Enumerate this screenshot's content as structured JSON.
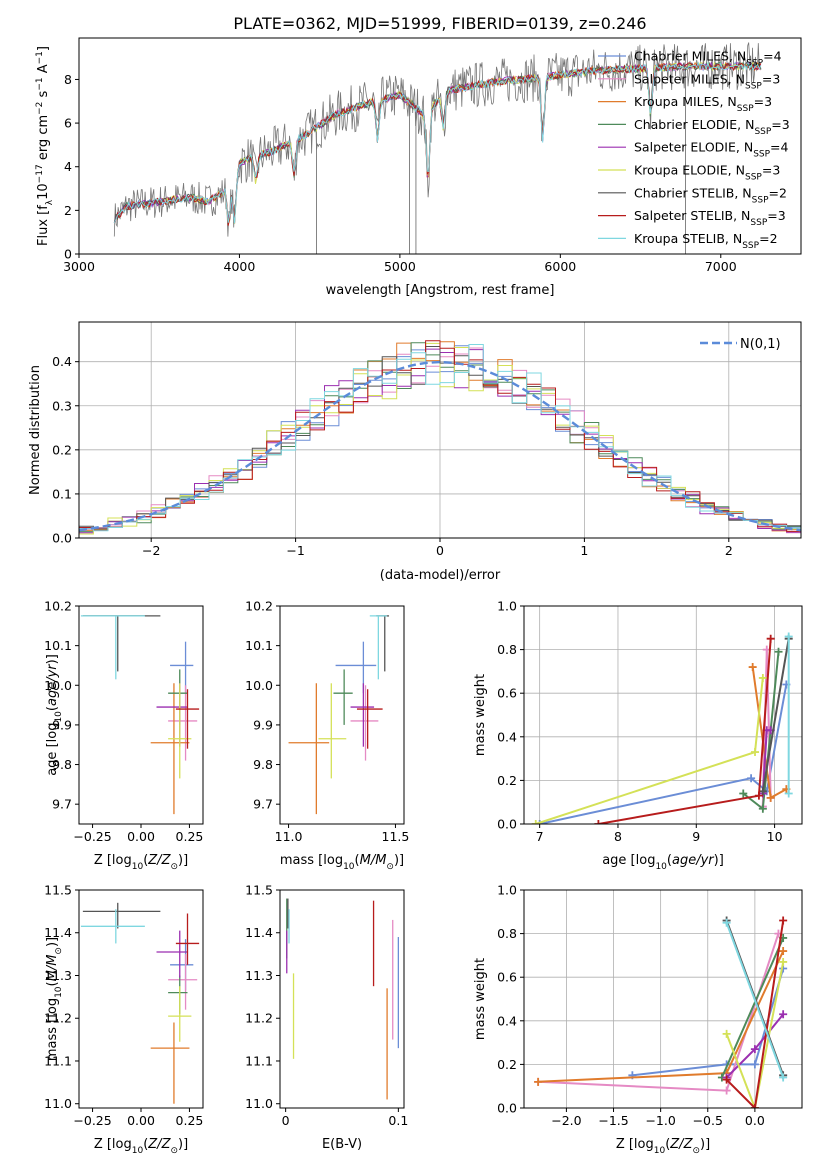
{
  "figure": {
    "title": "PLATE=0362, MJD=51999, FIBERID=0139, z=0.246"
  },
  "legend": {
    "entries": [
      {
        "model": "Chabrier MILES",
        "n": "4",
        "color": "#6b8dd6"
      },
      {
        "model": "Salpeter MILES",
        "n": "3",
        "color": "#e58ac4"
      },
      {
        "model": "Kroupa MILES",
        "n": "3",
        "color": "#e07b2c"
      },
      {
        "model": "Chabrier ELODIE",
        "n": "3",
        "color": "#4e8a5a"
      },
      {
        "model": "Salpeter ELODIE",
        "n": "4",
        "color": "#9b2fb0"
      },
      {
        "model": "Kroupa ELODIE",
        "n": "3",
        "color": "#d4e157"
      },
      {
        "model": "Chabrier STELIB",
        "n": "2",
        "color": "#555555"
      },
      {
        "model": "Salpeter STELIB",
        "n": "3",
        "color": "#b71c1c"
      },
      {
        "model": "Kroupa STELIB",
        "n": "2",
        "color": "#7fd7e0"
      }
    ]
  },
  "chart_data": [
    {
      "id": "spectrum",
      "type": "line",
      "xlabel": "wavelength [Angstrom, rest frame]",
      "ylabel": "Flux [f_λ 10^-17 erg cm^-2 s^-1 A^-1]",
      "xlim": [
        3000,
        7500
      ],
      "ylim": [
        0,
        9.9
      ],
      "xticks": [
        "3000",
        "4000",
        "5000",
        "6000",
        "7000"
      ],
      "yticks": [
        "0",
        "2",
        "4",
        "6",
        "8"
      ],
      "continuum": [
        [
          3220,
          1.6
        ],
        [
          3300,
          2.2
        ],
        [
          3500,
          2.4
        ],
        [
          3700,
          2.6
        ],
        [
          3800,
          2.4
        ],
        [
          3900,
          2.8
        ],
        [
          4000,
          4.2
        ],
        [
          4200,
          4.7
        ],
        [
          4400,
          5.4
        ],
        [
          4600,
          6.4
        ],
        [
          4800,
          6.9
        ],
        [
          5000,
          7.3
        ],
        [
          5150,
          6.4
        ],
        [
          5300,
          7.5
        ],
        [
          5600,
          7.9
        ],
        [
          5900,
          8.1
        ],
        [
          6200,
          8.4
        ],
        [
          6500,
          8.5
        ],
        [
          6800,
          8.6
        ],
        [
          7250,
          8.6
        ]
      ],
      "data_spikes": [
        4480,
        5060,
        5100,
        6780
      ],
      "grid": false
    },
    {
      "id": "residuals",
      "type": "histogram",
      "xlabel": "(data-model)/error",
      "ylabel": "Normed distribution",
      "xlim": [
        -2.5,
        2.5
      ],
      "ylim": [
        0,
        0.49
      ],
      "xticks": [
        "−2",
        "−1",
        "0",
        "1",
        "2"
      ],
      "yticks": [
        "0.0",
        "0.1",
        "0.2",
        "0.3",
        "0.4"
      ],
      "gaussian_label": "N(0,1)",
      "gaussian_color": "#5b8bd9",
      "grid": true
    },
    {
      "id": "age-vs-Z",
      "type": "errorbar",
      "xlabel": "Z [log10(Z/Z⊙)]",
      "ylabel": "age [log10(age/yr)]",
      "xlim": [
        -0.32,
        0.32
      ],
      "ylim": [
        9.65,
        10.2
      ],
      "xticks": [
        "−0.25",
        "0.00",
        "0.25"
      ],
      "yticks": [
        "9.7",
        "9.8",
        "9.9",
        "10.0",
        "10.1",
        "10.2"
      ],
      "points": [
        {
          "x": 0.23,
          "y": 10.05,
          "xerr": [
            0.08,
            0.04
          ],
          "yerr": [
            0.07,
            0.06
          ]
        },
        {
          "x": 0.23,
          "y": 9.91,
          "xerr": [
            0.09,
            0.06
          ],
          "yerr": [
            0.1,
            0.09
          ]
        },
        {
          "x": 0.17,
          "y": 9.855,
          "xerr": [
            0.12,
            0.08
          ],
          "yerr": [
            0.18,
            0.15
          ]
        },
        {
          "x": 0.2,
          "y": 9.98,
          "xerr": [
            0.06,
            0.04
          ],
          "yerr": [
            0.08,
            0.06
          ]
        },
        {
          "x": 0.2,
          "y": 9.945,
          "xerr": [
            0.12,
            0.04
          ],
          "yerr": [
            0.1,
            0.06
          ]
        },
        {
          "x": 0.2,
          "y": 9.865,
          "xerr": [
            0.06,
            0.06
          ],
          "yerr": [
            0.1,
            0.14
          ]
        },
        {
          "x": -0.12,
          "y": 10.175,
          "xerr": [
            0.18,
            0.22
          ],
          "yerr": [
            0.14,
            0.0
          ]
        },
        {
          "x": 0.24,
          "y": 9.94,
          "xerr": [
            0.06,
            0.06
          ],
          "yerr": [
            0.1,
            0.05
          ]
        },
        {
          "x": -0.13,
          "y": 10.175,
          "xerr": [
            0.18,
            0.15
          ],
          "yerr": [
            0.16,
            0.0
          ]
        }
      ]
    },
    {
      "id": "age-vs-mass",
      "type": "errorbar",
      "xlabel": "mass [log10(M/M⊙)]",
      "ylabel": "",
      "xlim": [
        10.96,
        11.54
      ],
      "ylim": [
        9.65,
        10.2
      ],
      "xticks": [
        "11.0",
        "11.5"
      ],
      "yticks": [
        "9.7",
        "9.8",
        "9.9",
        "10.0",
        "10.1",
        "10.2"
      ],
      "points": [
        {
          "x": 11.35,
          "y": 10.05,
          "xerr": [
            0.13,
            0.06
          ],
          "yerr": [
            0.07,
            0.06
          ]
        },
        {
          "x": 11.36,
          "y": 9.91,
          "xerr": [
            0.07,
            0.06
          ],
          "yerr": [
            0.1,
            0.09
          ]
        },
        {
          "x": 11.13,
          "y": 9.855,
          "xerr": [
            0.13,
            0.06
          ],
          "yerr": [
            0.18,
            0.15
          ]
        },
        {
          "x": 11.26,
          "y": 9.98,
          "xerr": [
            0.05,
            0.04
          ],
          "yerr": [
            0.08,
            0.06
          ]
        },
        {
          "x": 11.35,
          "y": 9.945,
          "xerr": [
            0.06,
            0.05
          ],
          "yerr": [
            0.1,
            0.06
          ]
        },
        {
          "x": 11.2,
          "y": 9.865,
          "xerr": [
            0.06,
            0.07
          ],
          "yerr": [
            0.1,
            0.14
          ]
        },
        {
          "x": 11.45,
          "y": 10.175,
          "xerr": [
            0.04,
            0.02
          ],
          "yerr": [
            0.14,
            0.0
          ]
        },
        {
          "x": 11.37,
          "y": 9.94,
          "xerr": [
            0.05,
            0.07
          ],
          "yerr": [
            0.1,
            0.05
          ]
        },
        {
          "x": 11.42,
          "y": 10.175,
          "xerr": [
            0.04,
            0.04
          ],
          "yerr": [
            0.16,
            0.0
          ]
        }
      ]
    },
    {
      "id": "weight-vs-age",
      "type": "line",
      "xlabel": "age [log10(age/yr)]",
      "ylabel": "mass weight",
      "xlim": [
        6.8,
        10.35
      ],
      "ylim": [
        0,
        1
      ],
      "xticks": [
        "7",
        "8",
        "9",
        "10"
      ],
      "yticks": [
        "0.0",
        "0.2",
        "0.4",
        "0.6",
        "0.8",
        "1.0"
      ],
      "grid": true,
      "series": [
        {
          "color": "#6b8dd6",
          "points": [
            [
              7,
              0
            ],
            [
              9.7,
              0.21
            ],
            [
              9.9,
              0.15
            ],
            [
              10.15,
              0.64
            ]
          ]
        },
        {
          "color": "#e58ac4",
          "points": [
            [
              9.85,
              0.08
            ],
            [
              9.9,
              0.8
            ],
            [
              9.95,
              0.12
            ]
          ]
        },
        {
          "color": "#e07b2c",
          "points": [
            [
              9.72,
              0.72
            ],
            [
              9.95,
              0.12
            ],
            [
              10.15,
              0.16
            ]
          ]
        },
        {
          "color": "#4e8a5a",
          "points": [
            [
              9.6,
              0.14
            ],
            [
              9.85,
              0.07
            ],
            [
              10.05,
              0.79
            ]
          ]
        },
        {
          "color": "#9b2fb0",
          "points": [
            [
              9.85,
              0.14
            ],
            [
              9.9,
              0.43
            ],
            [
              9.95,
              0.43
            ]
          ]
        },
        {
          "color": "#d4e157",
          "points": [
            [
              6.95,
              0
            ],
            [
              9.75,
              0.33
            ],
            [
              9.85,
              0.67
            ]
          ]
        },
        {
          "color": "#555555",
          "points": [
            [
              9.85,
              0.15
            ],
            [
              10.18,
              0.85
            ]
          ]
        },
        {
          "color": "#b71c1c",
          "points": [
            [
              7.75,
              0
            ],
            [
              9.8,
              0.13
            ],
            [
              9.95,
              0.85
            ]
          ]
        },
        {
          "color": "#7fd7e0",
          "points": [
            [
              10.18,
              0.14
            ],
            [
              10.18,
              0.86
            ]
          ]
        }
      ]
    },
    {
      "id": "mass-vs-Z",
      "type": "errorbar",
      "xlabel": "Z [log10(Z/Z⊙)]",
      "ylabel": "mass [log10(M/M⊙)]",
      "xlim": [
        -0.32,
        0.32
      ],
      "ylim": [
        10.99,
        11.5
      ],
      "xticks": [
        "−0.25",
        "0.00",
        "0.25"
      ],
      "yticks": [
        "11.0",
        "11.1",
        "11.2",
        "11.3",
        "11.4",
        "11.5"
      ],
      "points": [
        {
          "x": 0.23,
          "y": 11.325,
          "xerr": [
            0.08,
            0.04
          ],
          "yerr": [
            0.06,
            0.06
          ]
        },
        {
          "x": 0.23,
          "y": 11.29,
          "xerr": [
            0.09,
            0.06
          ],
          "yerr": [
            0.07,
            0.06
          ]
        },
        {
          "x": 0.17,
          "y": 11.13,
          "xerr": [
            0.12,
            0.08
          ],
          "yerr": [
            0.13,
            0.06
          ]
        },
        {
          "x": 0.2,
          "y": 11.26,
          "xerr": [
            0.06,
            0.04
          ],
          "yerr": [
            0.05,
            0.04
          ]
        },
        {
          "x": 0.2,
          "y": 11.355,
          "xerr": [
            0.12,
            0.04
          ],
          "yerr": [
            0.06,
            0.05
          ]
        },
        {
          "x": 0.2,
          "y": 11.205,
          "xerr": [
            0.06,
            0.06
          ],
          "yerr": [
            0.06,
            0.07
          ]
        },
        {
          "x": -0.12,
          "y": 11.45,
          "xerr": [
            0.18,
            0.22
          ],
          "yerr": [
            0.04,
            0.02
          ]
        },
        {
          "x": 0.24,
          "y": 11.375,
          "xerr": [
            0.06,
            0.06
          ],
          "yerr": [
            0.05,
            0.07
          ]
        },
        {
          "x": -0.13,
          "y": 11.415,
          "xerr": [
            0.18,
            0.15
          ],
          "yerr": [
            0.04,
            0.04
          ]
        }
      ]
    },
    {
      "id": "mass-vs-EBV",
      "type": "errorbar",
      "xlabel": "E(B-V)",
      "ylabel": "",
      "xlim": [
        -0.005,
        0.105
      ],
      "ylim": [
        10.99,
        11.5
      ],
      "xticks": [
        "0",
        "0.1"
      ],
      "yticks": [
        "11.0",
        "11.1",
        "11.2",
        "11.3",
        "11.4",
        "11.5"
      ],
      "points": [
        {
          "x": 0.1,
          "y": 11.26,
          "xerr": [
            0,
            0
          ],
          "yerr": [
            0.13,
            0.13
          ]
        },
        {
          "x": 0.095,
          "y": 11.29,
          "xerr": [
            0,
            0
          ],
          "yerr": [
            0.14,
            0.14
          ]
        },
        {
          "x": 0.09,
          "y": 11.13,
          "xerr": [
            0,
            0
          ],
          "yerr": [
            0.12,
            0.14
          ]
        },
        {
          "x": 0.001,
          "y": 11.42,
          "xerr": [
            0,
            0
          ],
          "yerr": [
            0.08,
            0.06
          ]
        },
        {
          "x": 0.001,
          "y": 11.355,
          "xerr": [
            0,
            0
          ],
          "yerr": [
            0.05,
            0.05
          ]
        },
        {
          "x": 0.007,
          "y": 11.205,
          "xerr": [
            0,
            0
          ],
          "yerr": [
            0.1,
            0.1
          ]
        },
        {
          "x": 0.002,
          "y": 11.45,
          "xerr": [
            0,
            0
          ],
          "yerr": [
            0.04,
            0.03
          ]
        },
        {
          "x": 0.078,
          "y": 11.375,
          "xerr": [
            0,
            0
          ],
          "yerr": [
            0.1,
            0.1
          ]
        },
        {
          "x": 0.003,
          "y": 11.415,
          "xerr": [
            0,
            0
          ],
          "yerr": [
            0.04,
            0.04
          ]
        }
      ]
    },
    {
      "id": "weight-vs-Z",
      "type": "line",
      "xlabel": "Z [log10(Z/Z⊙)]",
      "ylabel": "mass weight",
      "xlim": [
        -2.45,
        0.5
      ],
      "ylim": [
        0,
        1
      ],
      "xticks": [
        "−2.0",
        "−1.5",
        "−1.0",
        "−0.5",
        "0.0"
      ],
      "yticks": [
        "0.0",
        "0.2",
        "0.4",
        "0.6",
        "0.8",
        "1.0"
      ],
      "grid": true,
      "series": [
        {
          "color": "#6b8dd6",
          "points": [
            [
              -1.3,
              0.15
            ],
            [
              -0.3,
              0.2
            ],
            [
              0,
              0.2
            ],
            [
              0.3,
              0.64
            ]
          ]
        },
        {
          "color": "#e58ac4",
          "points": [
            [
              -2.3,
              0.12
            ],
            [
              -0.3,
              0.08
            ],
            [
              0.25,
              0.8
            ]
          ]
        },
        {
          "color": "#e07b2c",
          "points": [
            [
              -2.3,
              0.12
            ],
            [
              -0.3,
              0.16
            ],
            [
              0.3,
              0.72
            ]
          ]
        },
        {
          "color": "#4e8a5a",
          "points": [
            [
              -0.35,
              0.14
            ],
            [
              0.3,
              0.78
            ]
          ]
        },
        {
          "color": "#9b2fb0",
          "points": [
            [
              -0.3,
              0.14
            ],
            [
              0,
              0.27
            ],
            [
              0.3,
              0.43
            ]
          ]
        },
        {
          "color": "#d4e157",
          "points": [
            [
              -0.3,
              0.34
            ],
            [
              0,
              0
            ],
            [
              0.3,
              0.67
            ]
          ]
        },
        {
          "color": "#555555",
          "points": [
            [
              -0.3,
              0.86
            ],
            [
              0.3,
              0.15
            ]
          ]
        },
        {
          "color": "#b71c1c",
          "points": [
            [
              -0.3,
              0.13
            ],
            [
              0,
              0
            ],
            [
              0.3,
              0.86
            ]
          ]
        },
        {
          "color": "#7fd7e0",
          "points": [
            [
              -0.3,
              0.85
            ],
            [
              0.3,
              0.14
            ]
          ]
        }
      ]
    }
  ]
}
